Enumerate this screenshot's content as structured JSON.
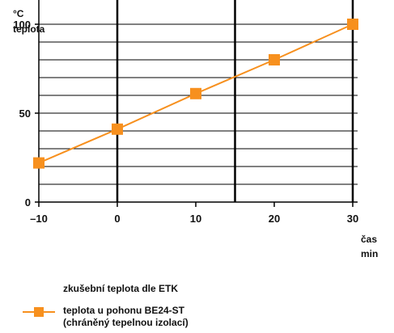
{
  "chart_data": {
    "type": "line",
    "y_unit": "°C",
    "ylabel": "teplota",
    "xlabel": "čas",
    "x_unit": "min",
    "xlim": [
      -10,
      30
    ],
    "ylim": [
      0,
      100
    ],
    "x_ticks": [
      -10,
      0,
      10,
      20,
      30
    ],
    "y_ticks": [
      0,
      50,
      100
    ],
    "grid": true,
    "series": [
      {
        "name": "teplota u pohonu BE24-ST",
        "name_line2": "(chráněný tepelnou izolací)",
        "color": "#f7901e",
        "x": [
          -10,
          0,
          10,
          20,
          30
        ],
        "y": [
          22,
          41,
          61,
          80,
          100
        ]
      }
    ],
    "legend": {
      "placement": "bottom-left",
      "etk_label": "zkušební teplota dle ETK"
    }
  }
}
